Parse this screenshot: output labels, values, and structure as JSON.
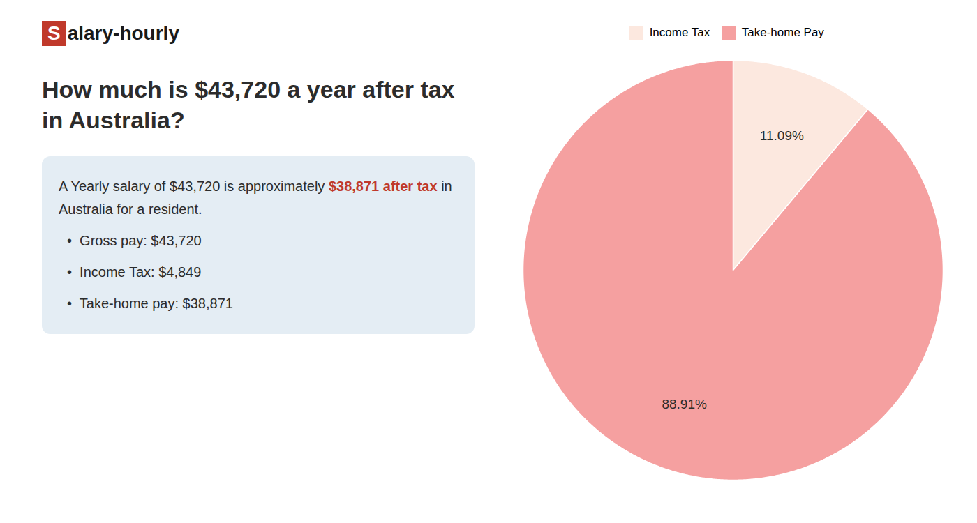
{
  "chart_data": {
    "type": "pie",
    "title": "How much is $43,720 a year after tax in Australia?",
    "categories": [
      "Income Tax",
      "Take-home Pay"
    ],
    "values": [
      11.09,
      88.91
    ],
    "value_labels": [
      "11.09%",
      "88.91%"
    ],
    "colors": [
      "#fce8df",
      "#f5a0a0"
    ],
    "data_labels": true,
    "legend": "top",
    "annotations": [
      [
        {
          "text": "S",
          "color": "#ffffff",
          "background": "#c0392b"
        },
        {
          "text": "alary-hourly"
        }
      ],
      [
        {
          "text": "A Yearly salary of $43,720 is approximately "
        },
        {
          "text": "$38,871 after tax",
          "color": "#c0392b"
        },
        {
          "text": " in"
        }
      ],
      [
        {
          "text": "Australia for a resident."
        }
      ],
      [
        {
          "text": "•  Gross pay: $43,720"
        }
      ],
      [
        {
          "text": "•  Income Tax: $4,849"
        }
      ],
      [
        {
          "text": "•  Take-home pay: $38,871"
        }
      ]
    ]
  }
}
